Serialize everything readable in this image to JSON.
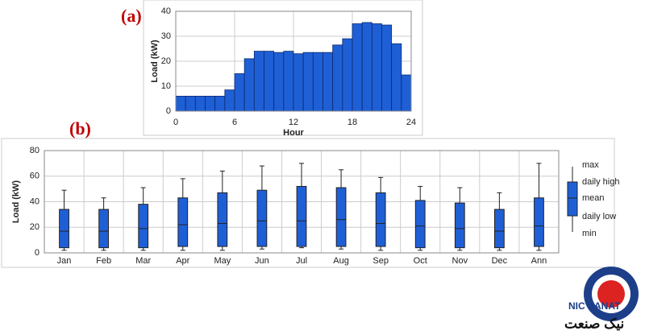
{
  "chart_data": [
    {
      "type": "histogram",
      "annotation": "(a)",
      "y_label": "Load (kW)",
      "x_label": "Hour",
      "bins": [
        0,
        1,
        2,
        3,
        4,
        5,
        6,
        7,
        8,
        9,
        10,
        11,
        12,
        13,
        14,
        15,
        16,
        17,
        18,
        19,
        20,
        21,
        22,
        23,
        24
      ],
      "values": [
        6,
        6,
        6,
        6,
        6,
        8.5,
        15,
        21,
        24,
        24,
        23.5,
        24,
        23,
        23.5,
        23.5,
        23.5,
        26.5,
        29,
        35,
        35.5,
        35,
        34.5,
        27,
        14.5
      ],
      "color": "#1f5fd6",
      "xlim": [
        0,
        24
      ],
      "xticks": [
        0,
        6,
        12,
        18,
        24
      ],
      "ylim": [
        0,
        40
      ],
      "yticks": [
        0,
        10,
        20,
        30,
        40
      ],
      "grid": true
    },
    {
      "type": "boxplot",
      "annotation": "(b)",
      "y_label": "Load (kW)",
      "categories": [
        "Jan",
        "Feb",
        "Mar",
        "Apr",
        "May",
        "Jun",
        "Jul",
        "Aug",
        "Sep",
        "Oct",
        "Nov",
        "Dec",
        "Ann"
      ],
      "series": [
        {
          "name": "max",
          "values": [
            49,
            43,
            51,
            58,
            64,
            68,
            70,
            65,
            59,
            52,
            51,
            47,
            70
          ]
        },
        {
          "name": "daily high",
          "values": [
            34,
            34,
            38,
            43,
            47,
            49,
            52,
            51,
            47,
            41,
            39,
            34,
            43
          ]
        },
        {
          "name": "mean",
          "values": [
            17,
            17,
            19,
            22,
            23,
            25,
            25,
            26,
            23,
            21,
            19,
            17,
            21
          ]
        },
        {
          "name": "daily low",
          "values": [
            4,
            4,
            4,
            5,
            5,
            5,
            5,
            5,
            5,
            4,
            4,
            4,
            5
          ]
        },
        {
          "name": "min",
          "values": [
            2,
            2,
            2,
            2,
            2,
            3,
            4,
            3,
            2,
            2,
            2,
            2,
            2
          ]
        }
      ],
      "color": "#1f5fd6",
      "ylim": [
        0,
        80
      ],
      "yticks": [
        0,
        20,
        40,
        60,
        80
      ],
      "grid": true
    }
  ],
  "logo": {
    "latin": "NIC SANAT",
    "persian": "نیک صنعت"
  }
}
